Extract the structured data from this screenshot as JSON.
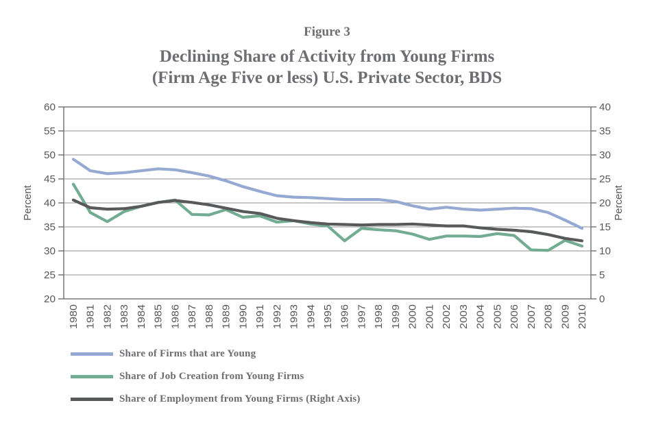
{
  "figure": {
    "label": "Figure 3",
    "title_line1": "Declining Share of Activity from Young Firms",
    "title_line2": "(Firm Age Five or less) U.S. Private Sector, BDS"
  },
  "chart_data": {
    "type": "line",
    "categories": [
      1980,
      1981,
      1982,
      1983,
      1984,
      1985,
      1986,
      1987,
      1988,
      1989,
      1990,
      1991,
      1992,
      1993,
      1994,
      1995,
      1996,
      1997,
      1998,
      1999,
      2000,
      2001,
      2002,
      2003,
      2004,
      2005,
      2006,
      2007,
      2008,
      2009,
      2010
    ],
    "series": [
      {
        "name": "Share of Firms that are Young",
        "axis": "left",
        "color": "#95a9d2",
        "values": [
          49.1,
          46.7,
          46.1,
          46.3,
          46.7,
          47.1,
          46.9,
          46.3,
          45.6,
          44.6,
          43.4,
          42.4,
          41.5,
          41.2,
          41.1,
          40.9,
          40.7,
          40.7,
          40.7,
          40.3,
          39.4,
          38.7,
          39.1,
          38.7,
          38.5,
          38.7,
          38.9,
          38.8,
          38.0,
          36.4,
          34.7
        ]
      },
      {
        "name": "Share of Job Creation from Young Firms",
        "axis": "left",
        "color": "#72ac92",
        "values": [
          43.9,
          38.0,
          36.1,
          38.2,
          39.3,
          40.1,
          40.6,
          37.6,
          37.5,
          38.6,
          37.0,
          37.3,
          36.0,
          36.3,
          35.6,
          35.2,
          32.1,
          34.7,
          34.4,
          34.2,
          33.5,
          32.4,
          33.1,
          33.1,
          33.0,
          33.6,
          33.2,
          30.2,
          30.1,
          32.2,
          31.0
        ]
      },
      {
        "name": "Share of Employment from Young Firms (Right Axis)",
        "axis": "right",
        "color": "#58595b",
        "values": [
          20.6,
          19.0,
          18.7,
          18.8,
          19.3,
          20.1,
          20.5,
          20.1,
          19.6,
          18.9,
          18.2,
          17.8,
          16.8,
          16.3,
          15.9,
          15.6,
          15.5,
          15.4,
          15.5,
          15.5,
          15.6,
          15.4,
          15.2,
          15.2,
          14.8,
          14.5,
          14.3,
          14.0,
          13.4,
          12.6,
          12.1
        ]
      }
    ],
    "left_axis": {
      "label": "Percent",
      "min": 20,
      "max": 60,
      "tick_step": 5
    },
    "right_axis": {
      "label": "Percent",
      "min": 0,
      "max": 40,
      "tick_step": 5
    },
    "grid": true,
    "legend_position": "bottom-left",
    "colors": {
      "grid_line": "#8f8f8f",
      "axis_box": "#6f6f6f",
      "tick_text": "#57585a",
      "title_text": "#6d6e71"
    }
  }
}
